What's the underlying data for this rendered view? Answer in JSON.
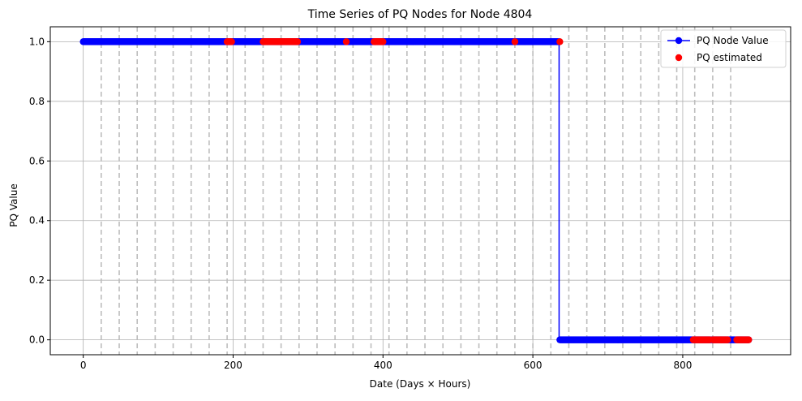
{
  "chart_data": {
    "type": "line",
    "title": "Time Series of PQ Nodes for Node 4804",
    "xlabel": "Date (Days × Hours)",
    "ylabel": "PQ Value",
    "xlim": [
      -44,
      944
    ],
    "ylim": [
      -0.05,
      1.05
    ],
    "xticks": [
      0,
      200,
      400,
      600,
      800
    ],
    "xtick_labels": [
      "0",
      "200",
      "400",
      "600",
      "800"
    ],
    "yticks": [
      0.0,
      0.2,
      0.4,
      0.6,
      0.8,
      1.0
    ],
    "ytick_labels": [
      "0.0",
      "0.2",
      "0.4",
      "0.6",
      "0.8",
      "1.0"
    ],
    "grid": true,
    "day_boundaries": [
      24,
      48,
      72,
      96,
      120,
      144,
      168,
      192,
      216,
      240,
      264,
      288,
      312,
      336,
      360,
      384,
      408,
      432,
      456,
      480,
      504,
      528,
      552,
      576,
      600,
      624,
      648,
      672,
      696,
      720,
      744,
      768,
      792,
      816,
      840,
      864
    ],
    "legend_position": "top-right",
    "series": [
      {
        "name": "PQ Node Value",
        "kind": "line-marker",
        "color": "#0000ff",
        "segments": [
          {
            "x_start": 0,
            "x_end": 635,
            "y": 1.0
          },
          {
            "x_start": 635,
            "x_end": 888,
            "y": 0.0
          }
        ]
      },
      {
        "name": "PQ estimated",
        "kind": "scatter",
        "color": "#ff0000",
        "ranges": [
          {
            "x_start": 192,
            "x_end": 198,
            "y": 1.0
          },
          {
            "x_start": 240,
            "x_end": 286,
            "y": 1.0
          },
          {
            "x_start": 351,
            "x_end": 351,
            "y": 1.0
          },
          {
            "x_start": 388,
            "x_end": 400,
            "y": 1.0
          },
          {
            "x_start": 576,
            "x_end": 576,
            "y": 1.0
          },
          {
            "x_start": 636,
            "x_end": 636,
            "y": 1.0
          },
          {
            "x_start": 814,
            "x_end": 836,
            "y": 0.0
          },
          {
            "x_start": 840,
            "x_end": 860,
            "y": 0.0
          },
          {
            "x_start": 872,
            "x_end": 888,
            "y": 0.0
          }
        ]
      }
    ]
  }
}
